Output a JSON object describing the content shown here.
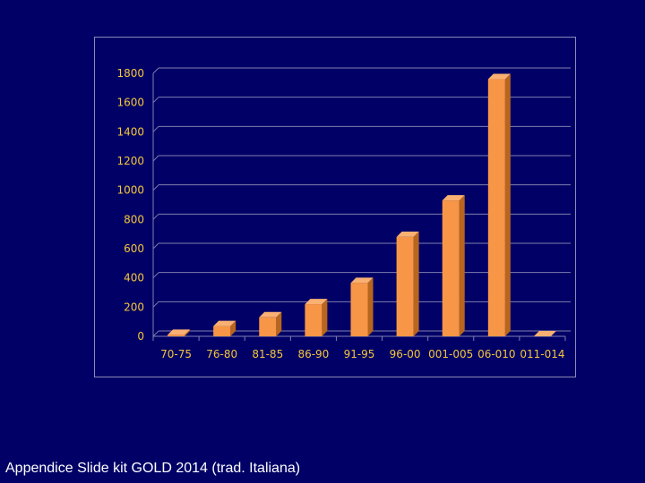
{
  "footer": {
    "caption": "Appendice Slide kit GOLD 2014 (trad. Italiana)"
  },
  "colors": {
    "background": "#000066",
    "bar_front": "#f79646",
    "bar_side": "#b8651e",
    "bar_top": "#f9b072",
    "tick_text": "#f5c63a",
    "gridline": "#7f7fb0"
  },
  "chart_data": {
    "type": "bar",
    "title": "",
    "xlabel": "",
    "ylabel": "",
    "categories": [
      "70-75",
      "76-80",
      "81-85",
      "86-90",
      "91-95",
      "96-00",
      "001-005",
      "06-010",
      "011-014"
    ],
    "values": [
      10,
      70,
      130,
      220,
      365,
      680,
      930,
      1760,
      0
    ],
    "ylim": [
      0,
      1800
    ],
    "yticks": [
      0,
      200,
      400,
      600,
      800,
      1000,
      1200,
      1400,
      1600,
      1800
    ],
    "grid": true,
    "legend": "none",
    "style": "3d-column"
  }
}
